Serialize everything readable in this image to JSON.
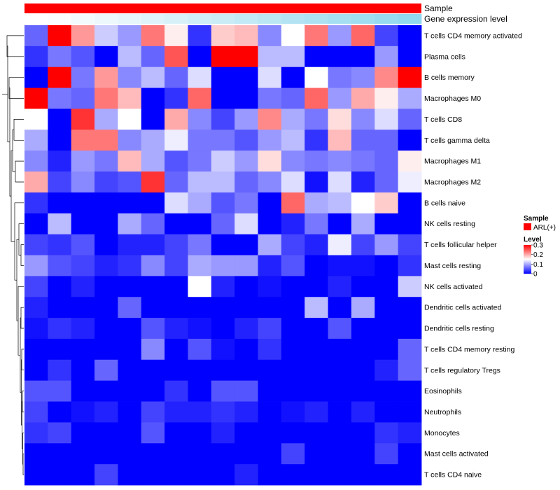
{
  "chart_data": {
    "type": "heatmap",
    "annotation_rows": [
      {
        "name": "Sample",
        "value_label": "ARL(+)",
        "color": "#ff0000"
      },
      {
        "name": "Gene expression level"
      }
    ],
    "expression_level_colors": [
      "#ffffff",
      "#fbfdfe",
      "#f4fbfd",
      "#edf8fc",
      "#e6f6fb",
      "#dff3fa",
      "#d8f1f9",
      "#d0eef8",
      "#c9ecf7",
      "#c2e9f6",
      "#bbe7f5",
      "#b4e4f4",
      "#ade2f3",
      "#a6dff2",
      "#9fddf1",
      "#98daf0",
      "#91d8ef"
    ],
    "rows": [
      "T cells CD4 memory activated",
      "Plasma cells",
      "B cells memory",
      "Macrophages M0",
      "T cells CD8",
      "T cells gamma delta",
      "Macrophages M1",
      "Macrophages M2",
      "B cells naive",
      "NK cells resting",
      "T cells follicular helper",
      "Mast cells resting",
      "NK cells activated",
      "Dendritic cells activated",
      "Dendritic cells resting",
      "T cells CD4 memory resting",
      "T cells regulatory  Tregs",
      "Eosinophils",
      "Neutrophils",
      "Monocytes",
      "Mast cells activated",
      "T cells CD4 naive"
    ],
    "values": [
      [
        0.06,
        0.3,
        0.21,
        0.12,
        0.09,
        0.23,
        0.16,
        0.03,
        0.18,
        0.19,
        0.08,
        0.15,
        0.23,
        0.09,
        0.24,
        0.04,
        0.0
      ],
      [
        0.03,
        0.07,
        0.05,
        0.0,
        0.11,
        0.06,
        0.25,
        0.0,
        0.3,
        0.3,
        0.11,
        0.11,
        0.0,
        0.0,
        0.0,
        0.09,
        0.0
      ],
      [
        0.0,
        0.3,
        0.07,
        0.21,
        0.08,
        0.11,
        0.06,
        0.13,
        0.0,
        0.0,
        0.13,
        0.0,
        0.15,
        0.07,
        0.08,
        0.22,
        0.3
      ],
      [
        0.3,
        0.07,
        0.06,
        0.23,
        0.19,
        0.0,
        0.03,
        0.24,
        0.0,
        0.0,
        0.07,
        0.06,
        0.24,
        0.09,
        0.2,
        0.16,
        0.1
      ],
      [
        0.15,
        0.0,
        0.27,
        0.1,
        0.15,
        0.0,
        0.2,
        0.08,
        0.04,
        0.09,
        0.22,
        0.1,
        0.07,
        0.17,
        0.08,
        0.13,
        0.06
      ],
      [
        0.1,
        0.0,
        0.23,
        0.23,
        0.08,
        0.1,
        0.14,
        0.07,
        0.07,
        0.05,
        0.09,
        0.11,
        0.03,
        0.19,
        0.06,
        0.06,
        0.0
      ],
      [
        0.08,
        0.02,
        0.09,
        0.07,
        0.19,
        0.1,
        0.05,
        0.07,
        0.12,
        0.09,
        0.17,
        0.08,
        0.07,
        0.08,
        0.07,
        0.06,
        0.16
      ],
      [
        0.2,
        0.04,
        0.08,
        0.04,
        0.05,
        0.27,
        0.06,
        0.11,
        0.11,
        0.06,
        0.08,
        0.13,
        0.01,
        0.13,
        0.02,
        0.06,
        0.14
      ],
      [
        0.03,
        0.0,
        0.0,
        0.0,
        0.0,
        0.0,
        0.13,
        0.1,
        0.05,
        0.07,
        0.0,
        0.24,
        0.1,
        0.11,
        0.15,
        0.18,
        0.0
      ],
      [
        0.0,
        0.11,
        0.0,
        0.0,
        0.1,
        0.06,
        0.0,
        0.0,
        0.06,
        0.13,
        0.0,
        0.02,
        0.07,
        0.0,
        0.1,
        0.0,
        0.0
      ],
      [
        0.04,
        0.03,
        0.05,
        0.0,
        0.02,
        0.02,
        0.04,
        0.07,
        0.0,
        0.0,
        0.1,
        0.04,
        0.02,
        0.14,
        0.04,
        0.09,
        0.04
      ],
      [
        0.09,
        0.05,
        0.04,
        0.02,
        0.03,
        0.08,
        0.04,
        0.1,
        0.09,
        0.09,
        0.02,
        0.05,
        0.0,
        0.01,
        0.01,
        0.0,
        0.03
      ],
      [
        0.04,
        0.0,
        0.02,
        0.0,
        0.0,
        0.0,
        0.0,
        0.15,
        0.02,
        0.0,
        0.01,
        0.0,
        0.0,
        0.02,
        0.0,
        0.0,
        0.12
      ],
      [
        0.02,
        0.0,
        0.0,
        0.0,
        0.06,
        0.0,
        0.0,
        0.0,
        0.0,
        0.0,
        0.0,
        0.0,
        0.11,
        0.0,
        0.1,
        0.0,
        0.0
      ],
      [
        0.01,
        0.03,
        0.02,
        0.0,
        0.0,
        0.05,
        0.02,
        0.01,
        0.0,
        0.02,
        0.04,
        0.0,
        0.0,
        0.05,
        0.0,
        0.0,
        0.0
      ],
      [
        0.0,
        0.0,
        0.0,
        0.0,
        0.0,
        0.08,
        0.0,
        0.05,
        0.01,
        0.0,
        0.03,
        0.0,
        0.0,
        0.0,
        0.0,
        0.0,
        0.06
      ],
      [
        0.0,
        0.03,
        0.0,
        0.06,
        0.0,
        0.0,
        0.0,
        0.0,
        0.0,
        0.0,
        0.0,
        0.0,
        0.0,
        0.0,
        0.0,
        0.02,
        0.06
      ],
      [
        0.05,
        0.05,
        0.0,
        0.0,
        0.0,
        0.0,
        0.03,
        0.0,
        0.05,
        0.05,
        0.0,
        0.0,
        0.0,
        0.0,
        0.0,
        0.0,
        0.0
      ],
      [
        0.04,
        0.0,
        0.01,
        0.02,
        0.0,
        0.04,
        0.02,
        0.02,
        0.03,
        0.02,
        0.0,
        0.01,
        0.02,
        0.0,
        0.02,
        0.0,
        0.0
      ],
      [
        0.03,
        0.04,
        0.0,
        0.0,
        0.0,
        0.05,
        0.0,
        0.0,
        0.02,
        0.0,
        0.0,
        0.0,
        0.0,
        0.0,
        0.0,
        0.03,
        0.02
      ],
      [
        0.0,
        0.0,
        0.0,
        0.0,
        0.0,
        0.0,
        0.0,
        0.0,
        0.0,
        0.0,
        0.0,
        0.04,
        0.0,
        0.0,
        0.0,
        0.04,
        0.0
      ],
      [
        0.0,
        0.0,
        0.0,
        0.04,
        0.0,
        0.0,
        0.0,
        0.0,
        0.0,
        0.02,
        0.0,
        0.0,
        0.0,
        0.0,
        0.0,
        0.0,
        0.0
      ]
    ],
    "color_scale": {
      "min": 0,
      "max": 0.3,
      "low_color": "#0000ff",
      "mid_color": "#ffffff",
      "high_color": "#ff0000",
      "mid_value": 0.15
    },
    "legend": {
      "sample_title": "Sample",
      "sample_entry": "ARL(+)",
      "level_title": "Level",
      "ticks": [
        0.3,
        0.2,
        0.1,
        0
      ],
      "tick_labels": [
        "0.3",
        "0.2",
        "0.1",
        "0"
      ]
    },
    "row_dendrogram": true
  }
}
